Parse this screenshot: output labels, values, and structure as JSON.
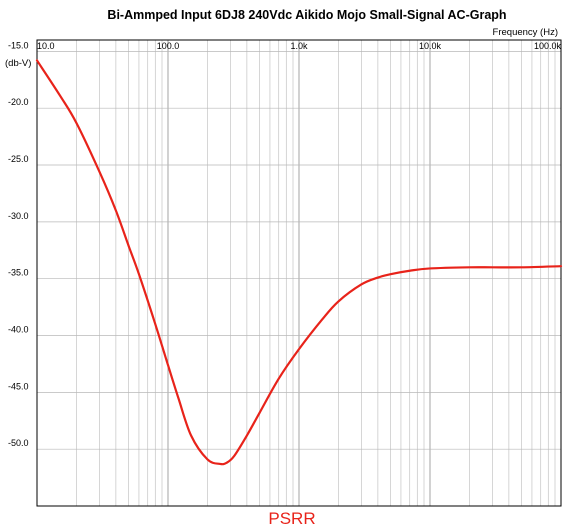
{
  "chart_data": {
    "type": "line",
    "title": "Bi-Ammped Input 6DJ8 240Vdc Aikido Mojo Small-Signal AC-Graph",
    "xlabel": "Frequency  (Hz)",
    "ylabel": "(db-V)",
    "x_scale": "log",
    "xlim": [
      10,
      100000
    ],
    "ylim": [
      -55,
      -14
    ],
    "grid": true,
    "x_tick_labels": [
      "10.0",
      "100.0",
      "1.0k",
      "10.0k",
      "100.0k"
    ],
    "y_tick_labels": [
      "-15.0",
      "-20.0",
      "-25.0",
      "-30.0",
      "-35.0",
      "-40.0",
      "-45.0",
      "-50.0"
    ],
    "y_ticks": [
      -15,
      -20,
      -25,
      -30,
      -35,
      -40,
      -45,
      -50
    ],
    "annotation": "PSRR",
    "series": [
      {
        "color": "#e8231a",
        "x": [
          10,
          15,
          20,
          30,
          40,
          50,
          60,
          80,
          100,
          120,
          150,
          200,
          250,
          280,
          320,
          400,
          500,
          700,
          1000,
          1500,
          2000,
          3000,
          4000,
          5000,
          7000,
          10000,
          20000,
          30000,
          50000,
          100000
        ],
        "y": [
          -15.8,
          -18.9,
          -21.3,
          -25.6,
          -29.0,
          -32.1,
          -34.6,
          -39.0,
          -42.6,
          -45.5,
          -48.8,
          -50.9,
          -51.3,
          -51.2,
          -50.6,
          -48.8,
          -46.8,
          -43.8,
          -41.2,
          -38.6,
          -37.0,
          -35.5,
          -34.9,
          -34.6,
          -34.3,
          -34.1,
          -34.0,
          -34.0,
          -34.0,
          -33.9
        ]
      }
    ]
  }
}
